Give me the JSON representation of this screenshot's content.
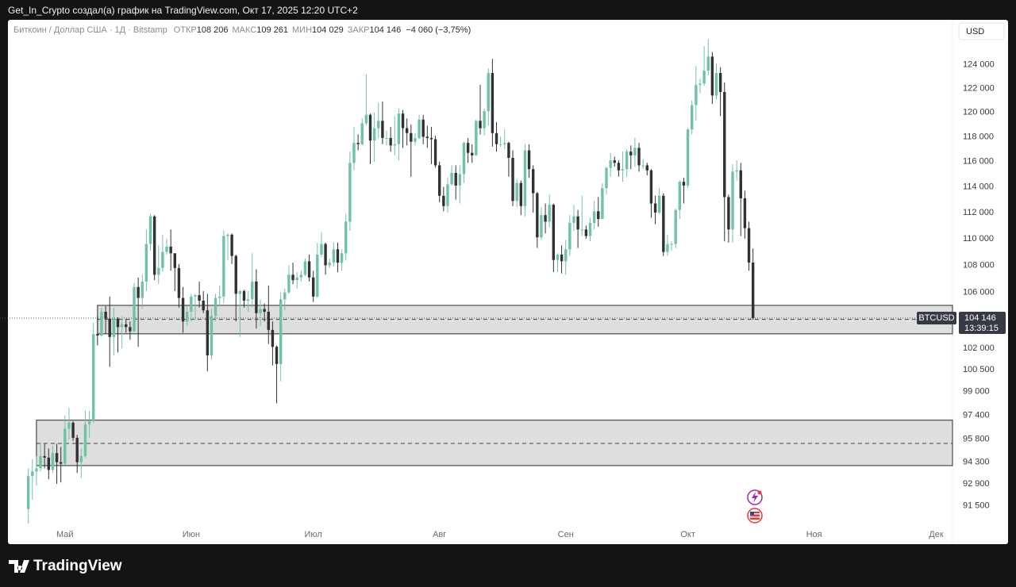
{
  "header": "Get_In_Crypto создал(а) график на TradingView.com, Окт 17, 2025 12:20 UTC+2",
  "footer": {
    "brand": "TradingView"
  },
  "chart_data": {
    "type": "candlestick",
    "title": "Биткоин / Доллар США · 1Д · Bitstamp",
    "ohlc_legend": [
      {
        "label": "ОТКР",
        "value": "108 206"
      },
      {
        "label": "МАКС",
        "value": "109 261"
      },
      {
        "label": "МИН",
        "value": "104 029"
      },
      {
        "label": "ЗАКР",
        "value": "104 146"
      }
    ],
    "change": "−4 060 (−3,75%)",
    "currency": "USD",
    "last_price": {
      "symbol": "BTCUSD",
      "price": "104 146",
      "countdown": "13:39:15"
    },
    "log_scale": true,
    "grid": false,
    "up_color": "#6fc3a2",
    "down_color": "#2f3136",
    "zone_color": "#dedede",
    "xlim": [
      -5,
      227
    ],
    "xticks": [
      {
        "value": 9,
        "label": "Май"
      },
      {
        "value": 40,
        "label": "Июн"
      },
      {
        "value": 70,
        "label": "Июл"
      },
      {
        "value": 101,
        "label": "Авг"
      },
      {
        "value": 132,
        "label": "Сен"
      },
      {
        "value": 162,
        "label": "Окт"
      },
      {
        "value": 193,
        "label": "Ноя"
      },
      {
        "value": 223,
        "label": "Дек"
      }
    ],
    "ylim": [
      90300,
      127900
    ],
    "yticks": [
      {
        "value": 124000,
        "label": "124 000"
      },
      {
        "value": 122000,
        "label": "122 000"
      },
      {
        "value": 120000,
        "label": "120 000"
      },
      {
        "value": 118000,
        "label": "118 000"
      },
      {
        "value": 116000,
        "label": "116 000"
      },
      {
        "value": 114000,
        "label": "114 000"
      },
      {
        "value": 112000,
        "label": "112 000"
      },
      {
        "value": 110000,
        "label": "110 000"
      },
      {
        "value": 108000,
        "label": "108 000"
      },
      {
        "value": 106000,
        "label": "106 000"
      },
      {
        "value": 102000,
        "label": "102 000"
      },
      {
        "value": 100500,
        "label": "100 500"
      },
      {
        "value": 99000,
        "label": "99 000"
      },
      {
        "value": 97400,
        "label": "97 400"
      },
      {
        "value": 95800,
        "label": "95 800"
      },
      {
        "value": 94300,
        "label": "94 300"
      },
      {
        "value": 92900,
        "label": "92 900"
      },
      {
        "value": 91500,
        "label": "91 500"
      }
    ],
    "zones": [
      {
        "start": 17,
        "top": 105060,
        "bottom": 103020,
        "mid": 104050
      },
      {
        "start": 2,
        "top": 97070,
        "bottom": 94080,
        "mid": 95530
      }
    ],
    "open": [
      91300,
      93400,
      93700,
      93900,
      94700,
      94600,
      93800,
      94900,
      94300,
      94200,
      96500,
      96900,
      95900,
      94300,
      94700,
      96800,
      97000,
      103000,
      102900,
      104600,
      104100,
      102800,
      104100,
      103500,
      103700,
      103500,
      103200,
      106400,
      105600,
      106800,
      109600,
      111700,
      107300,
      107800,
      109000,
      109400,
      108900,
      107800,
      105600,
      103900,
      104600,
      105700,
      105800,
      105400,
      104700,
      101500,
      104300,
      105600,
      105700,
      110200,
      110300,
      108700,
      105900,
      106100,
      105400,
      105500,
      106800,
      104500,
      104800,
      104600,
      103300,
      102100,
      100900,
      105500,
      106000,
      107300,
      106900,
      107100,
      107300,
      108300,
      107100,
      105700,
      108800,
      109600,
      108000,
      108200,
      109200,
      108200,
      108900,
      111300,
      115900,
      117500,
      117400,
      119100,
      119800,
      117700,
      118700,
      119300,
      117900,
      117900,
      117300,
      117400,
      119900,
      118700,
      118300,
      117600,
      117900,
      119400,
      118000,
      117900,
      117800,
      115700,
      113300,
      112500,
      114200,
      115100,
      114100,
      115000,
      117500,
      116700,
      116500,
      119300,
      118700,
      120100,
      123300,
      118300,
      117400,
      117400,
      117500,
      116300,
      112900,
      114300,
      112500,
      116900,
      115400,
      113500,
      110100,
      111800,
      111300,
      112600,
      108400,
      108800,
      108300,
      109200,
      111200,
      111700,
      110700,
      110700,
      110200,
      111200,
      112100,
      111500,
      113900,
      115500,
      116100,
      115900,
      115300,
      115400,
      116800,
      116500,
      117100,
      115700,
      115700,
      115300,
      112700,
      112000,
      113300,
      109000,
      109600,
      109600,
      112200,
      114400,
      114100,
      118600,
      120600,
      122300,
      122400,
      123500,
      124700,
      121400,
      123300,
      121700,
      113200,
      110700,
      115200,
      115300,
      113100,
      110800,
      108206
    ],
    "high": [
      93900,
      94500,
      94700,
      95600,
      95500,
      95200,
      95400,
      95500,
      95300,
      97400,
      97900,
      97000,
      96100,
      95200,
      97700,
      97700,
      103800,
      104300,
      104900,
      105000,
      105700,
      104900,
      104200,
      104300,
      104100,
      103900,
      106700,
      107100,
      107300,
      110700,
      111900,
      111800,
      109500,
      110300,
      110000,
      110700,
      108900,
      108100,
      106400,
      105000,
      105900,
      105900,
      106800,
      106100,
      105900,
      104800,
      105900,
      106500,
      110600,
      110400,
      110400,
      108800,
      106200,
      106200,
      106100,
      108900,
      107700,
      105500,
      105200,
      106500,
      103900,
      102200,
      106000,
      106300,
      108000,
      108200,
      107500,
      107600,
      108500,
      108800,
      107600,
      109700,
      110500,
      109700,
      108500,
      109700,
      109700,
      109200,
      111900,
      116800,
      118800,
      118200,
      119500,
      123200,
      119900,
      120000,
      120800,
      120900,
      118500,
      118800,
      119700,
      120300,
      120200,
      119500,
      119000,
      118300,
      119800,
      119800,
      118900,
      118800,
      118100,
      116000,
      114000,
      114700,
      115700,
      115700,
      115700,
      117600,
      117900,
      117400,
      119400,
      122300,
      120300,
      123700,
      124500,
      119200,
      118000,
      118600,
      117600,
      116900,
      114600,
      114500,
      117400,
      117400,
      115700,
      113600,
      112400,
      112700,
      113400,
      112700,
      108900,
      109500,
      109900,
      111800,
      112600,
      112200,
      113300,
      111000,
      111600,
      112900,
      113200,
      114300,
      115600,
      116700,
      116400,
      116100,
      116800,
      117000,
      117300,
      117900,
      117500,
      116200,
      115900,
      115400,
      113300,
      113900,
      113500,
      110300,
      109800,
      112300,
      114500,
      114700,
      118700,
      121000,
      123900,
      122800,
      125600,
      126200,
      125100,
      124100,
      123800,
      122500,
      113400,
      115800,
      116100,
      115900,
      113700,
      111300,
      109261
    ],
    "low": [
      90400,
      91900,
      92800,
      93700,
      93900,
      93200,
      93600,
      92900,
      93000,
      94100,
      95800,
      95700,
      93600,
      93300,
      94600,
      95900,
      96900,
      102200,
      102800,
      103000,
      100700,
      101500,
      101700,
      102000,
      103100,
      102600,
      103100,
      102100,
      104800,
      106100,
      109100,
      106900,
      106600,
      107500,
      108800,
      107600,
      106100,
      104900,
      103100,
      103600,
      103900,
      104000,
      104900,
      104500,
      100400,
      101200,
      103900,
      105000,
      105200,
      108400,
      108100,
      103900,
      102800,
      104900,
      104600,
      104900,
      103400,
      103600,
      103900,
      102300,
      100800,
      98200,
      99700,
      104700,
      105900,
      106600,
      106300,
      106800,
      107200,
      106800,
      105300,
      105600,
      108600,
      107300,
      107800,
      107900,
      107500,
      107600,
      108400,
      110600,
      115300,
      116900,
      117300,
      118900,
      115800,
      116000,
      117900,
      117400,
      117300,
      116800,
      116500,
      116100,
      117100,
      117300,
      114800,
      117300,
      117800,
      117400,
      117100,
      115800,
      115500,
      112800,
      112100,
      112000,
      114100,
      113000,
      112700,
      114300,
      115900,
      115900,
      116500,
      118200,
      118100,
      118900,
      117200,
      116800,
      117200,
      117000,
      114800,
      112500,
      112400,
      111800,
      111700,
      114700,
      112000,
      109300,
      109900,
      110400,
      110900,
      107500,
      107500,
      107400,
      107300,
      108700,
      110600,
      109300,
      110200,
      110000,
      109800,
      110700,
      110900,
      111500,
      113400,
      114800,
      115600,
      114800,
      114400,
      114800,
      115400,
      115600,
      115200,
      115400,
      114900,
      111600,
      111100,
      111900,
      108700,
      108700,
      109100,
      109300,
      111500,
      112700,
      113900,
      118200,
      119300,
      121600,
      122200,
      123100,
      120700,
      121100,
      119700,
      109800,
      109700,
      109700,
      114500,
      110200,
      110000,
      107600,
      104029
    ],
    "close": [
      93400,
      93700,
      93900,
      94700,
      94600,
      93800,
      94900,
      94300,
      94200,
      96500,
      96900,
      95900,
      94300,
      94700,
      96800,
      97000,
      103000,
      102900,
      104600,
      104100,
      102800,
      104100,
      103500,
      103700,
      103500,
      103200,
      106400,
      105600,
      106800,
      109600,
      111700,
      107300,
      107800,
      109000,
      109400,
      108900,
      107800,
      105600,
      103900,
      104600,
      105700,
      105800,
      105400,
      104700,
      101500,
      104300,
      105600,
      105700,
      110200,
      110300,
      108700,
      105900,
      106100,
      105400,
      105500,
      106800,
      104500,
      104800,
      104600,
      103300,
      102100,
      100900,
      105500,
      106000,
      107300,
      106900,
      107100,
      107300,
      108300,
      107100,
      105700,
      108800,
      109600,
      108000,
      108200,
      109200,
      108200,
      108900,
      111300,
      115900,
      117500,
      117400,
      119100,
      119800,
      117700,
      118700,
      119300,
      117900,
      117900,
      117300,
      117400,
      119900,
      118700,
      118300,
      117600,
      117900,
      119400,
      118000,
      117900,
      117800,
      115700,
      113300,
      112500,
      114200,
      115100,
      114100,
      115000,
      117500,
      116700,
      116500,
      119300,
      118700,
      120100,
      123300,
      118300,
      117400,
      117400,
      117500,
      116300,
      112900,
      114300,
      112500,
      116900,
      115400,
      113500,
      110100,
      111800,
      111300,
      112600,
      108400,
      108800,
      108300,
      109200,
      111200,
      111700,
      110700,
      110700,
      110200,
      111200,
      112100,
      111500,
      113900,
      115500,
      116100,
      115900,
      115300,
      115400,
      116800,
      116500,
      117100,
      115700,
      115700,
      115300,
      112700,
      112000,
      113300,
      109000,
      109600,
      109600,
      112200,
      114400,
      114100,
      118600,
      120600,
      122300,
      122400,
      123500,
      124700,
      121400,
      123300,
      121700,
      113200,
      110700,
      115200,
      115300,
      113100,
      110800,
      108206,
      104146
    ]
  }
}
